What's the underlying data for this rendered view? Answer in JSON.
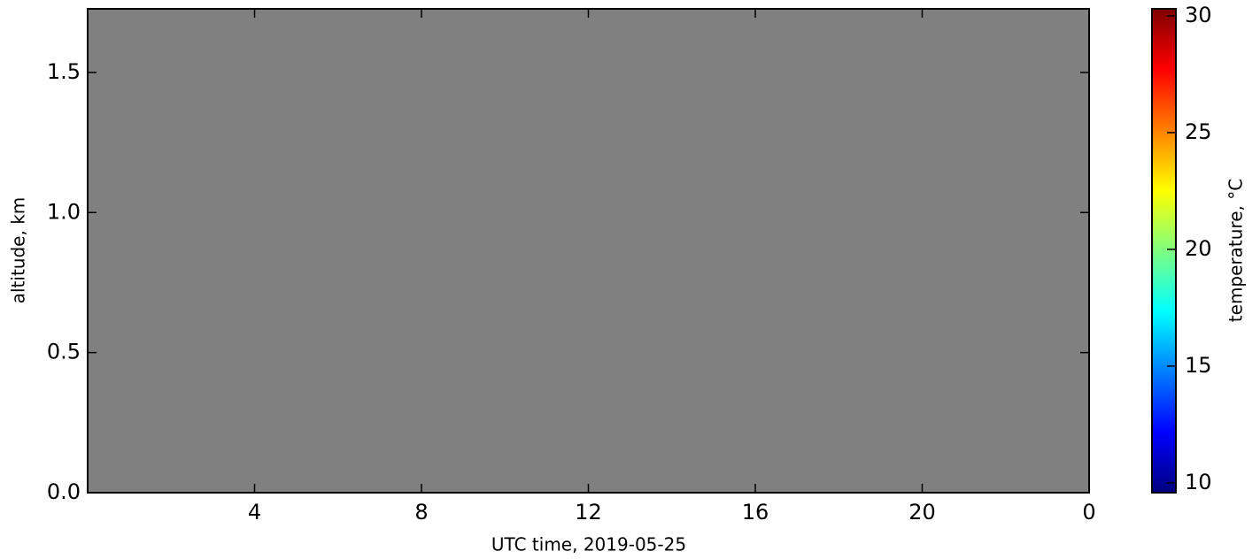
{
  "chart_data": {
    "type": "heatmap",
    "xlabel": "UTC time,  2019-05-25",
    "ylabel": "altitude, km",
    "xlim": [
      0,
      24
    ],
    "xticks": [
      4,
      8,
      12,
      16,
      20,
      {
        "value": 24,
        "label": "0"
      }
    ],
    "ylim": [
      0,
      1.727
    ],
    "yticks": [
      {
        "value": 0,
        "label": "0.0"
      },
      0.5,
      {
        "value": 1,
        "label": "1.0"
      },
      1.5
    ],
    "colorbar": {
      "label": "temperature, °C",
      "colormap": "jet",
      "clim": [
        9.58,
        30.3
      ],
      "ticks": [
        10,
        15,
        20,
        25,
        30
      ]
    },
    "background": "#808080"
  }
}
